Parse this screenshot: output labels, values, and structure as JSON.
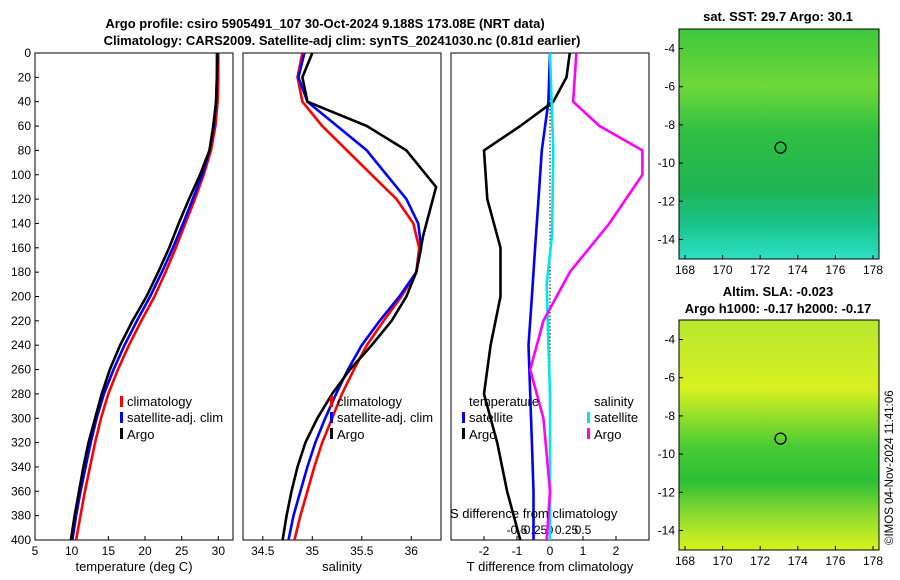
{
  "figure": {
    "title_line1": "Argo profile: csiro 5905491_107 30-Oct-2024 9.188S 173.08E (NRT data)",
    "title_line2": "Climatology: CARS2009. Satellite-adj clim: synTS_20241030.nc (0.81d earlier)",
    "timestamp": "©IMOS 04-Nov-2024 11:41:06"
  },
  "chart_data": [
    {
      "type": "line",
      "id": "temperature",
      "xlabel": "temperature (deg C)",
      "ylabel": "",
      "xlim": [
        5,
        32
      ],
      "ylim": [
        400,
        0
      ],
      "xticks": [
        "5",
        "10",
        "15",
        "20",
        "25",
        "30"
      ],
      "xtick_values": [
        5,
        10,
        15,
        20,
        25,
        30
      ],
      "yticks": [
        "0",
        "20",
        "40",
        "60",
        "80",
        "100",
        "120",
        "140",
        "160",
        "180",
        "200",
        "220",
        "240",
        "260",
        "280",
        "300",
        "320",
        "340",
        "360",
        "380",
        "400"
      ],
      "ytick_values": [
        0,
        20,
        40,
        60,
        80,
        100,
        120,
        140,
        160,
        180,
        200,
        220,
        240,
        260,
        280,
        300,
        320,
        340,
        360,
        380,
        400
      ],
      "series": [
        {
          "name": "climatology",
          "color": "#ff0000",
          "points": [
            [
              30.0,
              0
            ],
            [
              30.0,
              20
            ],
            [
              29.9,
              40
            ],
            [
              29.6,
              60
            ],
            [
              29.0,
              80
            ],
            [
              28.0,
              100
            ],
            [
              26.8,
              120
            ],
            [
              25.5,
              140
            ],
            [
              24.2,
              160
            ],
            [
              22.8,
              180
            ],
            [
              21.3,
              200
            ],
            [
              19.5,
              220
            ],
            [
              17.8,
              240
            ],
            [
              16.3,
              260
            ],
            [
              15.0,
              280
            ],
            [
              14.0,
              300
            ],
            [
              13.2,
              320
            ],
            [
              12.5,
              340
            ],
            [
              11.8,
              360
            ],
            [
              11.2,
              380
            ],
            [
              10.6,
              400
            ]
          ]
        },
        {
          "name": "satellite-adj. clim",
          "color": "#0000ff",
          "points": [
            [
              29.8,
              0
            ],
            [
              29.8,
              20
            ],
            [
              29.7,
              40
            ],
            [
              29.4,
              60
            ],
            [
              28.8,
              80
            ],
            [
              27.8,
              100
            ],
            [
              26.5,
              120
            ],
            [
              25.2,
              140
            ],
            [
              23.8,
              160
            ],
            [
              22.3,
              180
            ],
            [
              20.7,
              200
            ],
            [
              18.9,
              220
            ],
            [
              17.2,
              240
            ],
            [
              15.7,
              260
            ],
            [
              14.4,
              280
            ],
            [
              13.4,
              300
            ],
            [
              12.6,
              320
            ],
            [
              11.9,
              340
            ],
            [
              11.2,
              360
            ],
            [
              10.6,
              380
            ],
            [
              10.1,
              400
            ]
          ]
        },
        {
          "name": "Argo",
          "color": "#000000",
          "points": [
            [
              29.9,
              0
            ],
            [
              29.8,
              20
            ],
            [
              29.7,
              40
            ],
            [
              29.3,
              60
            ],
            [
              28.8,
              80
            ],
            [
              27.5,
              100
            ],
            [
              26.0,
              120
            ],
            [
              24.6,
              140
            ],
            [
              23.3,
              160
            ],
            [
              21.8,
              180
            ],
            [
              20.2,
              200
            ],
            [
              18.3,
              220
            ],
            [
              16.6,
              240
            ],
            [
              15.2,
              260
            ],
            [
              14.1,
              280
            ],
            [
              13.2,
              300
            ],
            [
              12.3,
              320
            ],
            [
              11.6,
              340
            ],
            [
              11.0,
              360
            ],
            [
              10.4,
              380
            ],
            [
              9.9,
              400
            ]
          ]
        }
      ]
    },
    {
      "type": "line",
      "id": "salinity",
      "xlabel": "salinity",
      "xlim": [
        34.3,
        36.3
      ],
      "ylim": [
        400,
        0
      ],
      "xticks": [
        "34.5",
        "35",
        "35.5",
        "36"
      ],
      "xtick_values": [
        34.5,
        35,
        35.5,
        36
      ],
      "series": [
        {
          "name": "climatology",
          "color": "#ff0000",
          "points": [
            [
              34.9,
              0
            ],
            [
              34.85,
              20
            ],
            [
              34.9,
              40
            ],
            [
              35.1,
              60
            ],
            [
              35.35,
              80
            ],
            [
              35.6,
              100
            ],
            [
              35.85,
              120
            ],
            [
              36.02,
              140
            ],
            [
              36.08,
              160
            ],
            [
              36.05,
              180
            ],
            [
              35.9,
              200
            ],
            [
              35.72,
              220
            ],
            [
              35.55,
              240
            ],
            [
              35.42,
              260
            ],
            [
              35.3,
              280
            ],
            [
              35.2,
              300
            ],
            [
              35.1,
              320
            ],
            [
              35.02,
              340
            ],
            [
              34.95,
              360
            ],
            [
              34.88,
              380
            ],
            [
              34.82,
              400
            ]
          ]
        },
        {
          "name": "satellite-adj. clim",
          "color": "#0000ff",
          "points": [
            [
              34.92,
              0
            ],
            [
              34.86,
              20
            ],
            [
              34.95,
              40
            ],
            [
              35.25,
              60
            ],
            [
              35.55,
              80
            ],
            [
              35.75,
              100
            ],
            [
              35.95,
              120
            ],
            [
              36.07,
              140
            ],
            [
              36.1,
              160
            ],
            [
              36.05,
              180
            ],
            [
              35.88,
              200
            ],
            [
              35.68,
              220
            ],
            [
              35.5,
              240
            ],
            [
              35.36,
              260
            ],
            [
              35.24,
              280
            ],
            [
              35.13,
              300
            ],
            [
              35.03,
              320
            ],
            [
              34.95,
              340
            ],
            [
              34.88,
              360
            ],
            [
              34.81,
              380
            ],
            [
              34.76,
              400
            ]
          ]
        },
        {
          "name": "Argo",
          "color": "#000000",
          "points": [
            [
              35.0,
              0
            ],
            [
              34.9,
              20
            ],
            [
              34.95,
              40
            ],
            [
              35.55,
              60
            ],
            [
              35.95,
              80
            ],
            [
              36.15,
              100
            ],
            [
              36.25,
              110
            ],
            [
              36.12,
              150
            ],
            [
              36.05,
              180
            ],
            [
              35.95,
              200
            ],
            [
              35.8,
              220
            ],
            [
              35.6,
              240
            ],
            [
              35.38,
              260
            ],
            [
              35.2,
              280
            ],
            [
              35.05,
              300
            ],
            [
              34.93,
              320
            ],
            [
              34.85,
              340
            ],
            [
              34.79,
              360
            ],
            [
              34.74,
              380
            ],
            [
              34.7,
              400
            ]
          ]
        }
      ]
    },
    {
      "type": "line",
      "id": "difference",
      "xlabel": "T difference from climatology",
      "xlabel_top": "S difference from climatology",
      "xlim": [
        -3,
        3
      ],
      "ylim": [
        400,
        0
      ],
      "xticks": [
        "-2",
        "-1",
        "0",
        "1",
        "2"
      ],
      "xtick_values": [
        -2,
        -1,
        0,
        1,
        2
      ],
      "sticks": [
        "-0.5",
        "-0.25",
        "0",
        "0.25",
        "0.5"
      ],
      "stick_values": [
        -0.5,
        -0.25,
        0,
        0.25,
        0.5
      ],
      "s_scale": 1.25,
      "temperature_legend": [
        {
          "name": "temperature",
          "color": "#ffffff"
        },
        {
          "name": "satellite",
          "color": "#0000ff"
        },
        {
          "name": "Argo",
          "color": "#000000"
        }
      ],
      "salinity_legend": [
        {
          "name": "salinity",
          "color": "#ffffff"
        },
        {
          "name": "satellite",
          "color": "#00e5ee"
        },
        {
          "name": "Argo",
          "color": "#ff00ff"
        }
      ],
      "series": [
        {
          "name": "T satellite",
          "color": "#0000ff",
          "points": [
            [
              0,
              0
            ],
            [
              -0.05,
              40
            ],
            [
              -0.25,
              80
            ],
            [
              -0.35,
              120
            ],
            [
              -0.45,
              160
            ],
            [
              -0.55,
              200
            ],
            [
              -0.65,
              240
            ],
            [
              -0.6,
              280
            ],
            [
              -0.55,
              320
            ],
            [
              -0.5,
              360
            ],
            [
              -0.5,
              400
            ]
          ]
        },
        {
          "name": "T Argo",
          "color": "#000000",
          "points": [
            [
              0.6,
              0
            ],
            [
              0.5,
              20
            ],
            [
              0.1,
              40
            ],
            [
              -0.9,
              60
            ],
            [
              -2.0,
              80
            ],
            [
              -1.9,
              120
            ],
            [
              -1.5,
              160
            ],
            [
              -1.5,
              200
            ],
            [
              -1.8,
              240
            ],
            [
              -2.0,
              280
            ],
            [
              -1.6,
              320
            ],
            [
              -1.3,
              360
            ],
            [
              -0.9,
              400
            ]
          ]
        },
        {
          "name": "S satellite",
          "color": "#00e5ee",
          "points": [
            [
              0.0,
              0
            ],
            [
              0.05,
              40
            ],
            [
              0.1,
              80
            ],
            [
              0.08,
              120
            ],
            [
              0.06,
              150
            ],
            [
              -0.1,
              190
            ],
            [
              -0.05,
              240
            ],
            [
              0.0,
              280
            ],
            [
              0.0,
              320
            ],
            [
              0.0,
              360
            ],
            [
              0.0,
              400
            ]
          ]
        },
        {
          "name": "S Argo",
          "color": "#ff00ff",
          "points": [
            [
              0.8,
              0
            ],
            [
              0.7,
              40
            ],
            [
              1.5,
              60
            ],
            [
              2.8,
              80
            ],
            [
              2.8,
              100
            ],
            [
              1.8,
              140
            ],
            [
              0.6,
              180
            ],
            [
              -0.2,
              220
            ],
            [
              -0.6,
              260
            ],
            [
              -0.2,
              300
            ],
            [
              0.0,
              360
            ],
            [
              -0.1,
              400
            ]
          ]
        }
      ]
    }
  ],
  "maps": [
    {
      "title": "sat. SST: 29.7 Argo: 30.1",
      "xticks": [
        "168",
        "170",
        "172",
        "174",
        "176",
        "178"
      ],
      "xtick_values": [
        168,
        170,
        172,
        174,
        176,
        178
      ],
      "yticks": [
        "-4",
        "-6",
        "-8",
        "-10",
        "-12",
        "-14"
      ],
      "ytick_values": [
        -4,
        -6,
        -8,
        -10,
        -12,
        -14
      ],
      "marker": [
        173.08,
        -9.188
      ]
    },
    {
      "title": "Altim. SLA: -0.023",
      "subtitle": "Argo h1000: -0.17 h2000: -0.17",
      "xticks": [
        "168",
        "170",
        "172",
        "174",
        "176",
        "178"
      ],
      "xtick_values": [
        168,
        170,
        172,
        174,
        176,
        178
      ],
      "yticks": [
        "-4",
        "-6",
        "-8",
        "-10",
        "-12",
        "-14"
      ],
      "ytick_values": [
        -4,
        -6,
        -8,
        -10,
        -12,
        -14
      ],
      "marker": [
        173.08,
        -9.188
      ]
    }
  ]
}
